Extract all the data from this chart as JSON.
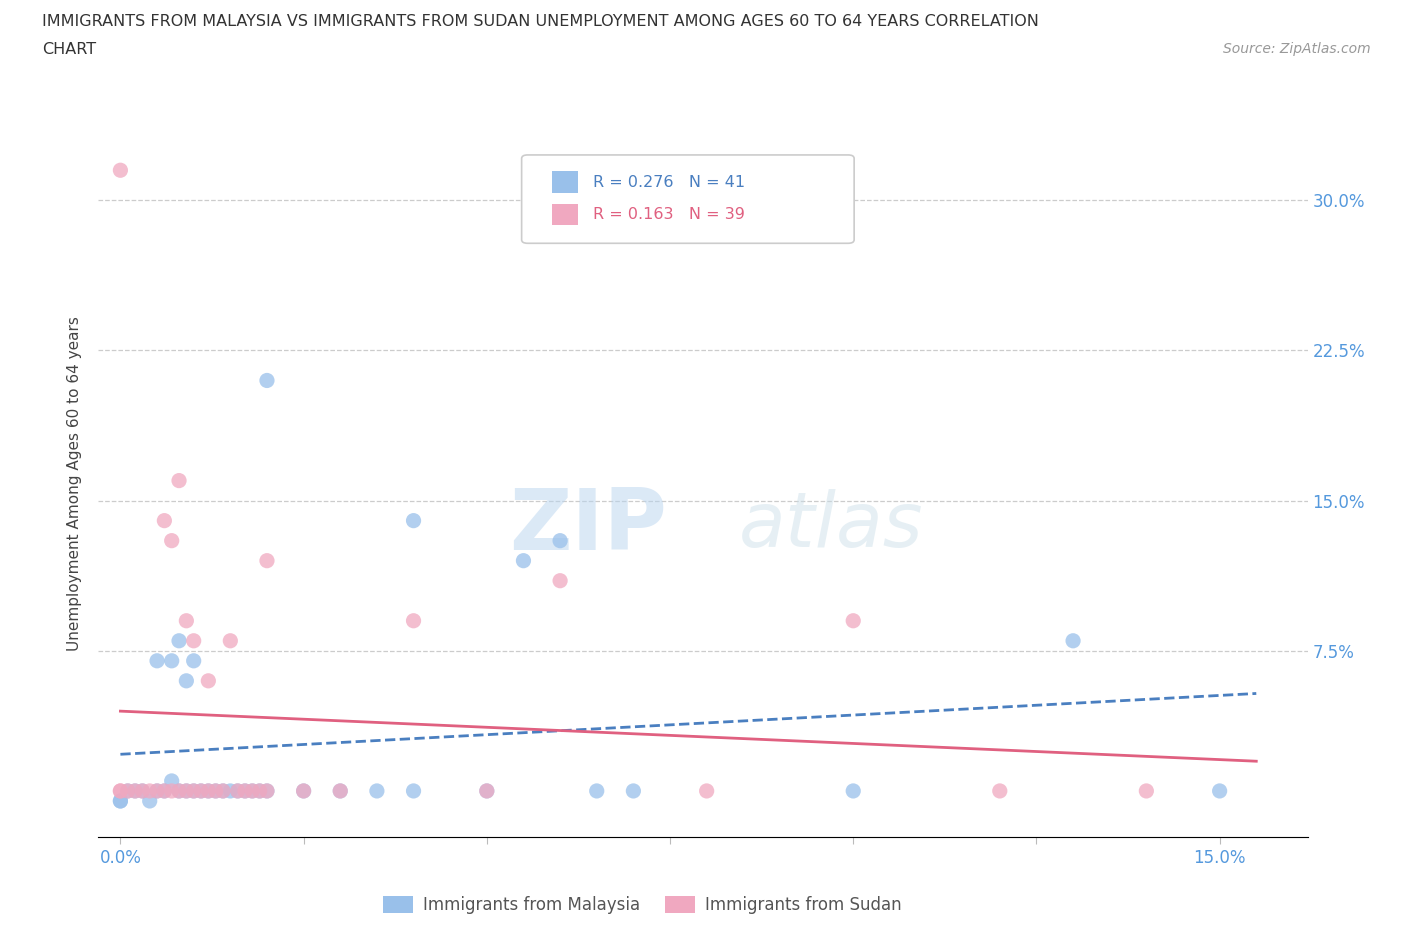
{
  "title_line1": "IMMIGRANTS FROM MALAYSIA VS IMMIGRANTS FROM SUDAN UNEMPLOYMENT AMONG AGES 60 TO 64 YEARS CORRELATION",
  "title_line2": "CHART",
  "source_text": "Source: ZipAtlas.com",
  "ylabel": "Unemployment Among Ages 60 to 64 years",
  "xlim": [
    -0.003,
    0.162
  ],
  "ylim": [
    -0.018,
    0.335
  ],
  "legend_r1": "R = 0.276",
  "legend_n1": "N = 41",
  "legend_r2": "R = 0.163",
  "legend_n2": "N = 39",
  "color_malaysia": "#99c0ea",
  "color_sudan": "#f0a8c0",
  "trend_malaysia_color": "#4a7fc0",
  "trend_sudan_color": "#e06080",
  "malaysia_scatter": [
    [
      0.0,
      0.0
    ],
    [
      0.0,
      0.0
    ],
    [
      0.001,
      0.005
    ],
    [
      0.002,
      0.005
    ],
    [
      0.003,
      0.005
    ],
    [
      0.004,
      0.0
    ],
    [
      0.005,
      0.005
    ],
    [
      0.005,
      0.07
    ],
    [
      0.006,
      0.005
    ],
    [
      0.007,
      0.01
    ],
    [
      0.007,
      0.07
    ],
    [
      0.008,
      0.08
    ],
    [
      0.008,
      0.005
    ],
    [
      0.009,
      0.005
    ],
    [
      0.009,
      0.06
    ],
    [
      0.01,
      0.005
    ],
    [
      0.01,
      0.07
    ],
    [
      0.011,
      0.005
    ],
    [
      0.012,
      0.005
    ],
    [
      0.013,
      0.005
    ],
    [
      0.014,
      0.005
    ],
    [
      0.015,
      0.005
    ],
    [
      0.016,
      0.005
    ],
    [
      0.017,
      0.005
    ],
    [
      0.018,
      0.005
    ],
    [
      0.019,
      0.005
    ],
    [
      0.02,
      0.005
    ],
    [
      0.02,
      0.21
    ],
    [
      0.025,
      0.005
    ],
    [
      0.03,
      0.005
    ],
    [
      0.035,
      0.005
    ],
    [
      0.04,
      0.005
    ],
    [
      0.04,
      0.14
    ],
    [
      0.05,
      0.005
    ],
    [
      0.055,
      0.12
    ],
    [
      0.06,
      0.13
    ],
    [
      0.065,
      0.005
    ],
    [
      0.07,
      0.005
    ],
    [
      0.1,
      0.005
    ],
    [
      0.13,
      0.08
    ],
    [
      0.15,
      0.005
    ]
  ],
  "sudan_scatter": [
    [
      0.0,
      0.315
    ],
    [
      0.0,
      0.005
    ],
    [
      0.0,
      0.005
    ],
    [
      0.001,
      0.005
    ],
    [
      0.002,
      0.005
    ],
    [
      0.003,
      0.005
    ],
    [
      0.004,
      0.005
    ],
    [
      0.005,
      0.005
    ],
    [
      0.006,
      0.005
    ],
    [
      0.006,
      0.14
    ],
    [
      0.007,
      0.005
    ],
    [
      0.007,
      0.13
    ],
    [
      0.008,
      0.005
    ],
    [
      0.008,
      0.16
    ],
    [
      0.009,
      0.005
    ],
    [
      0.009,
      0.09
    ],
    [
      0.01,
      0.005
    ],
    [
      0.01,
      0.08
    ],
    [
      0.011,
      0.005
    ],
    [
      0.012,
      0.005
    ],
    [
      0.012,
      0.06
    ],
    [
      0.013,
      0.005
    ],
    [
      0.014,
      0.005
    ],
    [
      0.015,
      0.08
    ],
    [
      0.016,
      0.005
    ],
    [
      0.017,
      0.005
    ],
    [
      0.018,
      0.005
    ],
    [
      0.019,
      0.005
    ],
    [
      0.02,
      0.005
    ],
    [
      0.02,
      0.12
    ],
    [
      0.025,
      0.005
    ],
    [
      0.03,
      0.005
    ],
    [
      0.04,
      0.09
    ],
    [
      0.05,
      0.005
    ],
    [
      0.06,
      0.11
    ],
    [
      0.08,
      0.005
    ],
    [
      0.1,
      0.09
    ],
    [
      0.12,
      0.005
    ],
    [
      0.14,
      0.005
    ]
  ],
  "watermark_zip": "ZIP",
  "watermark_atlas": "atlas",
  "background_color": "#ffffff",
  "grid_color": "#cccccc"
}
